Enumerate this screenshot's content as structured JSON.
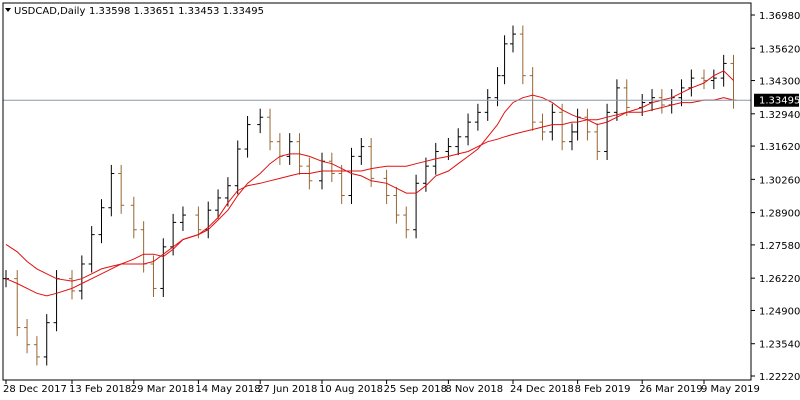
{
  "header": {
    "menu_arrow_icon": "triangle-down-icon",
    "symbol": "USDCAD,Daily",
    "ohlc": "1.33598 1.33651 1.33453 1.33495"
  },
  "current_price": {
    "label": "1.33495",
    "value": 1.33495
  },
  "colors": {
    "background": "#ffffff",
    "frame": "#000000",
    "bar_up": "#000000",
    "bar_down": "#996633",
    "moving_average": "#e01010",
    "price_line": "#8899aa",
    "price_tag_bg": "#000000",
    "price_tag_text": "#ffffff"
  },
  "chart_data": {
    "type": "ohlc",
    "x_tick_labels": [
      "28 Dec 2017",
      "13 Feb 2018",
      "29 Mar 2018",
      "14 May 2018",
      "27 Jun 2018",
      "10 Aug 2018",
      "25 Sep 2018",
      "8 Nov 2018",
      "24 Dec 2018",
      "8 Feb 2019",
      "26 Mar 2019",
      "9 May 2019"
    ],
    "y_tick_labels": [
      "1.36980",
      "1.35620",
      "1.34300",
      "1.32940",
      "1.31620",
      "1.30260",
      "1.28900",
      "1.27580",
      "1.26220",
      "1.24900",
      "1.23540",
      "1.22220"
    ],
    "ylim": [
      1.2222,
      1.3698
    ],
    "price_series": [
      {
        "date": "28 Dec 2017",
        "close": 1.262
      },
      {
        "date": "05 Jan 2018",
        "close": 1.242
      },
      {
        "date": "12 Jan 2018",
        "close": 1.235
      },
      {
        "date": "19 Jan 2018",
        "close": 1.23
      },
      {
        "date": "26 Jan 2018",
        "close": 1.244
      },
      {
        "date": "02 Feb 2018",
        "close": 1.262
      },
      {
        "date": "13 Feb 2018",
        "close": 1.257
      },
      {
        "date": "20 Feb 2018",
        "close": 1.268
      },
      {
        "date": "27 Feb 2018",
        "close": 1.28
      },
      {
        "date": "06 Mar 2018",
        "close": 1.291
      },
      {
        "date": "13 Mar 2018",
        "close": 1.305
      },
      {
        "date": "20 Mar 2018",
        "close": 1.292
      },
      {
        "date": "29 Mar 2018",
        "close": 1.282
      },
      {
        "date": "05 Apr 2018",
        "close": 1.268
      },
      {
        "date": "12 Apr 2018",
        "close": 1.258
      },
      {
        "date": "19 Apr 2018",
        "close": 1.275
      },
      {
        "date": "26 Apr 2018",
        "close": 1.285
      },
      {
        "date": "03 May 2018",
        "close": 1.288
      },
      {
        "date": "14 May 2018",
        "close": 1.282
      },
      {
        "date": "21 May 2018",
        "close": 1.29
      },
      {
        "date": "28 May 2018",
        "close": 1.295
      },
      {
        "date": "04 Jun 2018",
        "close": 1.3
      },
      {
        "date": "11 Jun 2018",
        "close": 1.315
      },
      {
        "date": "18 Jun 2018",
        "close": 1.325
      },
      {
        "date": "27 Jun 2018",
        "close": 1.328
      },
      {
        "date": "04 Jul 2018",
        "close": 1.318
      },
      {
        "date": "11 Jul 2018",
        "close": 1.312
      },
      {
        "date": "18 Jul 2018",
        "close": 1.318
      },
      {
        "date": "25 Jul 2018",
        "close": 1.308
      },
      {
        "date": "01 Aug 2018",
        "close": 1.302
      },
      {
        "date": "10 Aug 2018",
        "close": 1.31
      },
      {
        "date": "17 Aug 2018",
        "close": 1.305
      },
      {
        "date": "24 Aug 2018",
        "close": 1.296
      },
      {
        "date": "31 Aug 2018",
        "close": 1.312
      },
      {
        "date": "07 Sep 2018",
        "close": 1.316
      },
      {
        "date": "14 Sep 2018",
        "close": 1.303
      },
      {
        "date": "25 Sep 2018",
        "close": 1.296
      },
      {
        "date": "02 Oct 2018",
        "close": 1.288
      },
      {
        "date": "09 Oct 2018",
        "close": 1.282
      },
      {
        "date": "16 Oct 2018",
        "close": 1.301
      },
      {
        "date": "23 Oct 2018",
        "close": 1.308
      },
      {
        "date": "30 Oct 2018",
        "close": 1.314
      },
      {
        "date": "08 Nov 2018",
        "close": 1.316
      },
      {
        "date": "15 Nov 2018",
        "close": 1.32
      },
      {
        "date": "22 Nov 2018",
        "close": 1.326
      },
      {
        "date": "29 Nov 2018",
        "close": 1.33
      },
      {
        "date": "06 Dec 2018",
        "close": 1.336
      },
      {
        "date": "13 Dec 2018",
        "close": 1.345
      },
      {
        "date": "18 Dec 2018",
        "close": 1.358
      },
      {
        "date": "24 Dec 2018",
        "close": 1.362
      },
      {
        "date": "31 Dec 2018",
        "close": 1.345
      },
      {
        "date": "07 Jan 2019",
        "close": 1.326
      },
      {
        "date": "14 Jan 2019",
        "close": 1.322
      },
      {
        "date": "21 Jan 2019",
        "close": 1.33
      },
      {
        "date": "28 Jan 2019",
        "close": 1.318
      },
      {
        "date": "04 Feb 2019",
        "close": 1.322
      },
      {
        "date": "08 Feb 2019",
        "close": 1.328
      },
      {
        "date": "15 Feb 2019",
        "close": 1.322
      },
      {
        "date": "22 Feb 2019",
        "close": 1.314
      },
      {
        "date": "01 Mar 2019",
        "close": 1.33
      },
      {
        "date": "08 Mar 2019",
        "close": 1.34
      },
      {
        "date": "15 Mar 2019",
        "close": 1.332
      },
      {
        "date": "26 Mar 2019",
        "close": 1.334
      },
      {
        "date": "02 Apr 2019",
        "close": 1.336
      },
      {
        "date": "09 Apr 2019",
        "close": 1.333
      },
      {
        "date": "16 Apr 2019",
        "close": 1.336
      },
      {
        "date": "23 Apr 2019",
        "close": 1.34
      },
      {
        "date": "30 Apr 2019",
        "close": 1.344
      },
      {
        "date": "09 May 2019",
        "close": 1.343
      },
      {
        "date": "16 May 2019",
        "close": 1.344
      },
      {
        "date": "23 May 2019",
        "close": 1.35
      },
      {
        "date": "30 May 2019",
        "close": 1.335
      }
    ],
    "moving_averages": [
      {
        "values": [
          1.276,
          1.273,
          1.269,
          1.266,
          1.264,
          1.262,
          1.261,
          1.262,
          1.264,
          1.266,
          1.267,
          1.268,
          1.268,
          1.268,
          1.269,
          1.272,
          1.275,
          1.278,
          1.28,
          1.283,
          1.287,
          1.293,
          1.298,
          1.3,
          1.301,
          1.302,
          1.303,
          1.304,
          1.305,
          1.305,
          1.306,
          1.306,
          1.306,
          1.306,
          1.306,
          1.307,
          1.308,
          1.308,
          1.308,
          1.309,
          1.31,
          1.311,
          1.312,
          1.313,
          1.314,
          1.316,
          1.318,
          1.319,
          1.32,
          1.321,
          1.322,
          1.323,
          1.324,
          1.325,
          1.325,
          1.326,
          1.326,
          1.327,
          1.327,
          1.328,
          1.329,
          1.33,
          1.33,
          1.331,
          1.332,
          1.333,
          1.334,
          1.334,
          1.335,
          1.335,
          1.336,
          1.335
        ]
      },
      {
        "values": [
          1.262,
          1.26,
          1.258,
          1.256,
          1.255,
          1.256,
          1.258,
          1.26,
          1.262,
          1.264,
          1.266,
          1.268,
          1.27,
          1.272,
          1.272,
          1.271,
          1.274,
          1.278,
          1.28,
          1.282,
          1.286,
          1.29,
          1.296,
          1.301,
          1.305,
          1.309,
          1.312,
          1.313,
          1.313,
          1.312,
          1.31,
          1.309,
          1.307,
          1.305,
          1.304,
          1.302,
          1.301,
          1.299,
          1.297,
          1.297,
          1.3,
          1.304,
          1.306,
          1.309,
          1.312,
          1.315,
          1.32,
          1.325,
          1.33,
          1.334,
          1.336,
          1.337,
          1.336,
          1.334,
          1.331,
          1.329,
          1.328,
          1.327,
          1.325,
          1.326,
          1.328,
          1.33,
          1.332,
          1.334,
          1.335,
          1.336,
          1.338,
          1.34,
          1.342,
          1.345,
          1.347,
          1.343
        ]
      }
    ]
  }
}
